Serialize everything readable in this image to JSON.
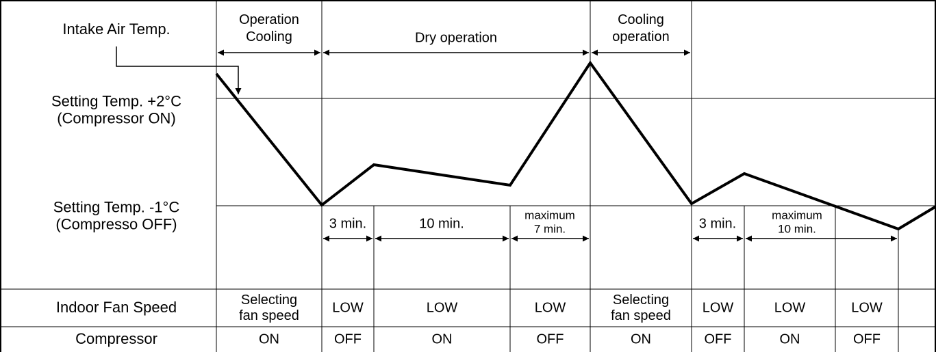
{
  "labels": {
    "intake": "Intake Air Temp.",
    "high": [
      "Setting Temp. +2°C",
      "(Compressor ON)"
    ],
    "low": [
      "Setting Temp. -1°C",
      "(Compresso OFF)"
    ]
  },
  "phases": [
    [
      "Operation",
      "Cooling"
    ],
    [
      "Dry operation"
    ],
    [
      "Cooling",
      "operation"
    ]
  ],
  "intervals": [
    [
      "3 min."
    ],
    [
      "10 min."
    ],
    [
      "maximum",
      "7 min."
    ],
    [
      "3 min."
    ],
    [
      "maximum",
      "10 min."
    ]
  ],
  "rows": [
    {
      "label": "Indoor Fan Speed",
      "cells": [
        [
          "Selecting",
          "fan speed"
        ],
        [
          "LOW"
        ],
        [
          "LOW"
        ],
        [
          "LOW"
        ],
        [
          "Selecting",
          "fan speed"
        ],
        [
          "LOW"
        ],
        [
          "LOW"
        ],
        [
          "LOW"
        ]
      ]
    },
    {
      "label": "Compressor",
      "cells": [
        [
          "ON"
        ],
        [
          "OFF"
        ],
        [
          "ON"
        ],
        [
          "OFF"
        ],
        [
          "ON"
        ],
        [
          "OFF"
        ],
        [
          "ON"
        ],
        [
          "OFF"
        ]
      ]
    }
  ]
}
